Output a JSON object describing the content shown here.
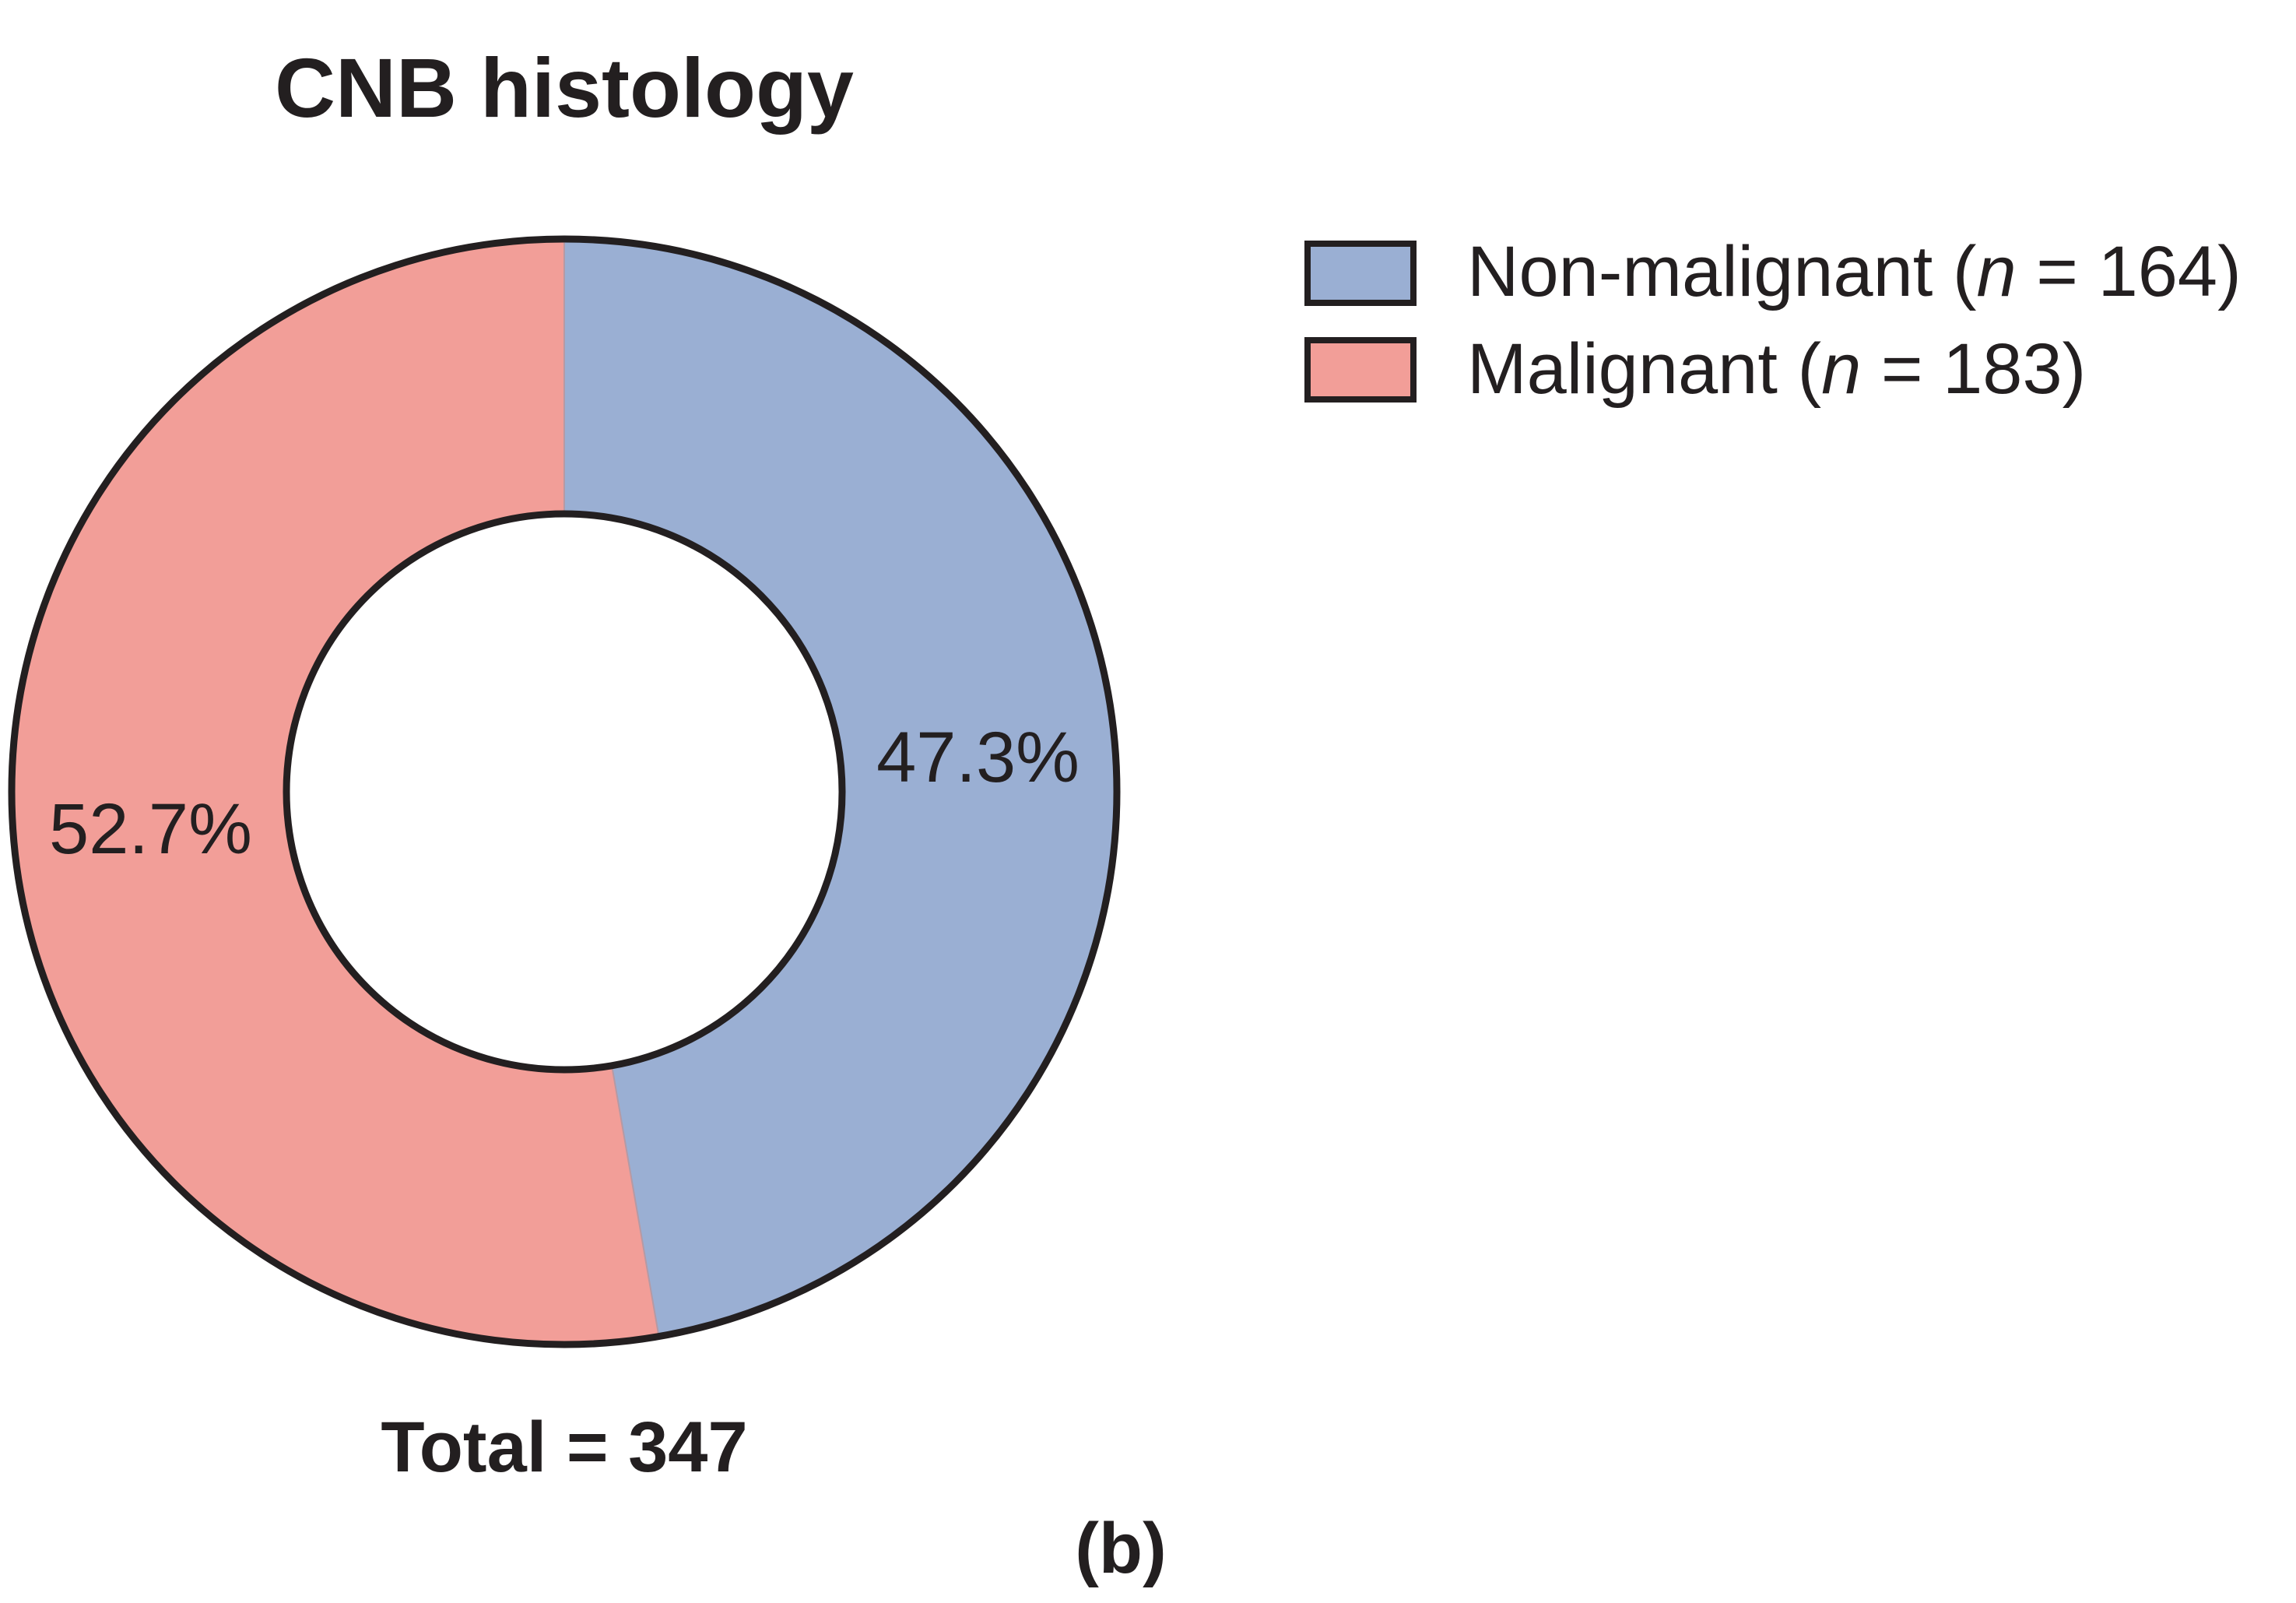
{
  "chart_data": {
    "type": "pie",
    "title": "CNB histology",
    "total_label": "Total = 347",
    "panel_label": "(b)",
    "slices": [
      {
        "key": "non_malignant",
        "category": "Non-malignant",
        "n": 164,
        "n_text": "164",
        "percent": 47.3,
        "label": "47.3%",
        "color": "#9aafd3"
      },
      {
        "key": "malignant",
        "category": "Malignant",
        "n": 183,
        "n_text": "183",
        "percent": 52.7,
        "label": "52.7%",
        "color": "#f29e98"
      }
    ],
    "legend": {
      "placement": "top-right",
      "items": [
        {
          "category": "Non-malignant",
          "n_prefix": " (",
          "n_symbol": "n",
          "n_equals": " = ",
          "n_value": "164",
          "n_suffix": ")",
          "color": "#9aafd3"
        },
        {
          "category": "Malignant",
          "n_prefix": " (",
          "n_symbol": "n",
          "n_equals": " = ",
          "n_value": "183",
          "n_suffix": ")",
          "color": "#f29e98"
        }
      ]
    },
    "outline_color": "#231f20",
    "donut": true
  }
}
